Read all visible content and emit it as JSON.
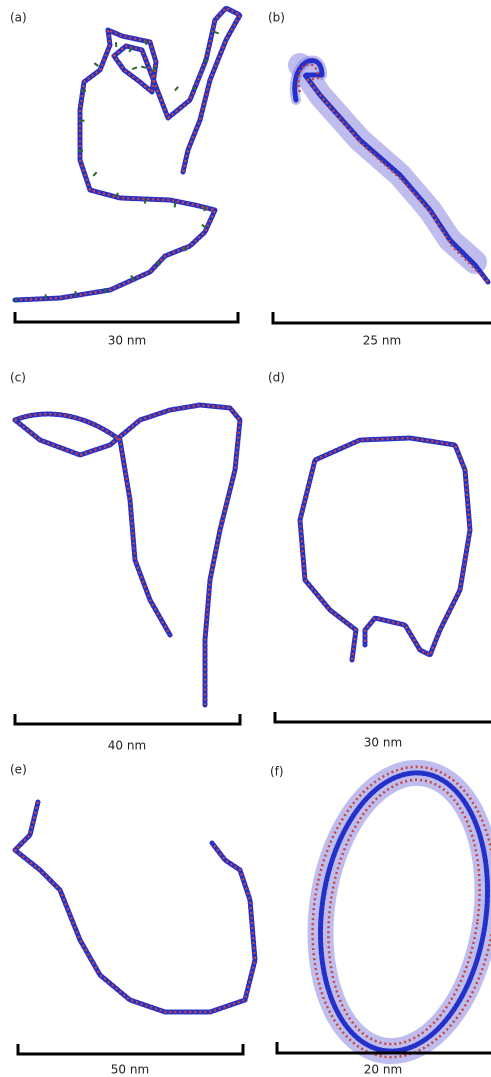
{
  "panels": [
    {
      "label": "(a)",
      "scale": "30 nm"
    },
    {
      "label": "(b)",
      "scale": "25 nm"
    },
    {
      "label": "(c)",
      "scale": "40 nm"
    },
    {
      "label": "(d)",
      "scale": "30 nm"
    },
    {
      "label": "(e)",
      "scale": "50 nm"
    },
    {
      "label": "(f)",
      "scale": "20 nm"
    }
  ]
}
